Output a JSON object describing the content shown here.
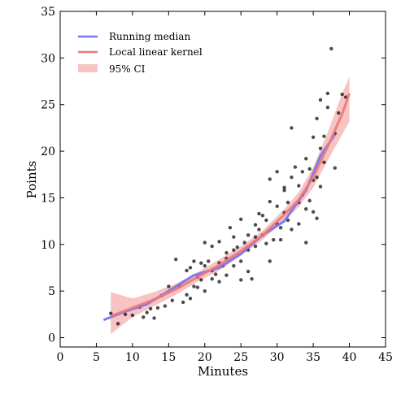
{
  "chart_data": {
    "type": "scatter",
    "title": "",
    "xlabel": "Minutes",
    "ylabel": "Points",
    "xlim": [
      0,
      45
    ],
    "ylim": [
      -1,
      35
    ],
    "xticks": [
      "0",
      "5",
      "10",
      "15",
      "20",
      "25",
      "30",
      "35",
      "40",
      "45"
    ],
    "yticks": [
      "0",
      "5",
      "10",
      "15",
      "20",
      "25",
      "30",
      "35"
    ],
    "grid": false,
    "legend_position": "top-left",
    "legend": [
      {
        "label": "Running median",
        "kind": "line",
        "color": "#7777ee"
      },
      {
        "label": "Local linear kernel",
        "kind": "line",
        "color": "#ee7777"
      },
      {
        "label": "95% CI",
        "kind": "band",
        "color": "#f7c3c3"
      }
    ],
    "scatter_color": "#000000",
    "running_median": [
      [
        6,
        1.9
      ],
      [
        9,
        2.8
      ],
      [
        12,
        3.6
      ],
      [
        15,
        5.0
      ],
      [
        18.5,
        6.7
      ],
      [
        22,
        7.5
      ],
      [
        25,
        9.0
      ],
      [
        28,
        11.0
      ],
      [
        31,
        12.5
      ],
      [
        34,
        15.8
      ],
      [
        36,
        19.5
      ],
      [
        38,
        21.8
      ]
    ],
    "kernel_fit": [
      [
        7,
        2.3
      ],
      [
        10,
        3.2
      ],
      [
        13,
        4.1
      ],
      [
        16,
        5.2
      ],
      [
        19,
        6.5
      ],
      [
        22,
        7.8
      ],
      [
        25,
        9.3
      ],
      [
        28,
        11.0
      ],
      [
        31,
        13.2
      ],
      [
        33,
        14.8
      ],
      [
        35,
        17.2
      ],
      [
        37,
        20.5
      ],
      [
        39,
        24.0
      ],
      [
        40,
        26.2
      ]
    ],
    "ci_upper": [
      [
        7,
        4.9
      ],
      [
        10,
        4.2
      ],
      [
        13,
        4.9
      ],
      [
        16,
        5.8
      ],
      [
        19,
        7.0
      ],
      [
        22,
        8.4
      ],
      [
        25,
        9.8
      ],
      [
        28,
        11.5
      ],
      [
        31,
        13.8
      ],
      [
        33,
        15.6
      ],
      [
        35,
        18.3
      ],
      [
        37,
        22.0
      ],
      [
        39,
        26.2
      ],
      [
        40,
        28.0
      ]
    ],
    "ci_lower": [
      [
        7,
        0.4
      ],
      [
        10,
        2.2
      ],
      [
        13,
        3.4
      ],
      [
        16,
        4.6
      ],
      [
        19,
        6.0
      ],
      [
        22,
        7.2
      ],
      [
        25,
        8.8
      ],
      [
        28,
        10.5
      ],
      [
        31,
        12.6
      ],
      [
        33,
        14.0
      ],
      [
        35,
        16.1
      ],
      [
        37,
        19.0
      ],
      [
        39,
        21.8
      ],
      [
        40,
        23.2
      ]
    ],
    "points": [
      [
        7,
        2.6
      ],
      [
        8,
        1.5
      ],
      [
        9,
        2.5
      ],
      [
        10,
        2.4
      ],
      [
        11,
        3.3
      ],
      [
        11.5,
        2.2
      ],
      [
        12,
        2.7
      ],
      [
        12.5,
        3.1
      ],
      [
        13,
        2.1
      ],
      [
        13.5,
        3.2
      ],
      [
        14,
        4.5
      ],
      [
        14.5,
        3.4
      ],
      [
        15,
        5.5
      ],
      [
        15.5,
        4.0
      ],
      [
        16,
        8.4
      ],
      [
        16.5,
        5.5
      ],
      [
        17,
        3.8
      ],
      [
        17.5,
        4.6
      ],
      [
        17.5,
        7.2
      ],
      [
        18,
        4.2
      ],
      [
        18,
        7.5
      ],
      [
        18.5,
        5.5
      ],
      [
        18.5,
        8.2
      ],
      [
        19,
        5.4
      ],
      [
        19,
        6.5
      ],
      [
        19.5,
        6.2
      ],
      [
        19.5,
        8.0
      ],
      [
        20,
        5.0
      ],
      [
        20,
        7.7
      ],
      [
        20,
        10.2
      ],
      [
        20.5,
        8.2
      ],
      [
        21,
        6.3
      ],
      [
        21,
        7.2
      ],
      [
        21,
        9.8
      ],
      [
        21.5,
        6.8
      ],
      [
        22,
        10.3
      ],
      [
        22,
        8.0
      ],
      [
        22,
        6.0
      ],
      [
        22.5,
        7.7
      ],
      [
        23,
        9.1
      ],
      [
        23,
        8.5
      ],
      [
        23,
        6.7
      ],
      [
        23.5,
        11.8
      ],
      [
        24,
        9.4
      ],
      [
        24,
        7.7
      ],
      [
        24,
        10.8
      ],
      [
        24.5,
        9.7
      ],
      [
        25,
        6.2
      ],
      [
        25,
        8.2
      ],
      [
        25,
        12.7
      ],
      [
        25.5,
        10.2
      ],
      [
        26,
        11.0
      ],
      [
        26,
        9.4
      ],
      [
        26,
        7.1
      ],
      [
        26.5,
        6.3
      ],
      [
        27,
        10.8
      ],
      [
        27,
        9.8
      ],
      [
        27,
        12.1
      ],
      [
        27.5,
        13.3
      ],
      [
        27.5,
        11.6
      ],
      [
        28,
        11.0
      ],
      [
        28,
        13.1
      ],
      [
        28.5,
        10.1
      ],
      [
        28.5,
        12.6
      ],
      [
        29,
        14.6
      ],
      [
        29,
        17.0
      ],
      [
        29,
        8.2
      ],
      [
        29.5,
        10.5
      ],
      [
        30,
        12.2
      ],
      [
        30,
        14.1
      ],
      [
        30,
        17.8
      ],
      [
        30.5,
        10.5
      ],
      [
        30.5,
        11.8
      ],
      [
        31,
        13.4
      ],
      [
        31,
        15.8
      ],
      [
        31,
        16.1
      ],
      [
        31.5,
        12.6
      ],
      [
        31.5,
        14.5
      ],
      [
        32,
        17.2
      ],
      [
        32,
        22.5
      ],
      [
        32,
        11.6
      ],
      [
        32.5,
        18.3
      ],
      [
        33,
        12.2
      ],
      [
        33,
        14.5
      ],
      [
        33,
        16.3
      ],
      [
        33.5,
        15.3
      ],
      [
        33.5,
        17.8
      ],
      [
        34,
        10.2
      ],
      [
        34,
        13.8
      ],
      [
        34,
        19.2
      ],
      [
        34.5,
        14.7
      ],
      [
        34.5,
        18.1
      ],
      [
        35,
        13.5
      ],
      [
        35,
        16.9
      ],
      [
        35,
        21.5
      ],
      [
        35.5,
        23.5
      ],
      [
        35.5,
        17.2
      ],
      [
        35.5,
        12.8
      ],
      [
        36,
        20.3
      ],
      [
        36,
        25.5
      ],
      [
        36,
        16.2
      ],
      [
        36.5,
        18.8
      ],
      [
        36.5,
        21.6
      ],
      [
        37,
        26.2
      ],
      [
        37,
        24.7
      ],
      [
        37.5,
        31.0
      ],
      [
        38,
        21.9
      ],
      [
        38,
        18.2
      ],
      [
        38.5,
        24.1
      ],
      [
        39,
        26.1
      ],
      [
        39.5,
        25.8
      ]
    ]
  }
}
